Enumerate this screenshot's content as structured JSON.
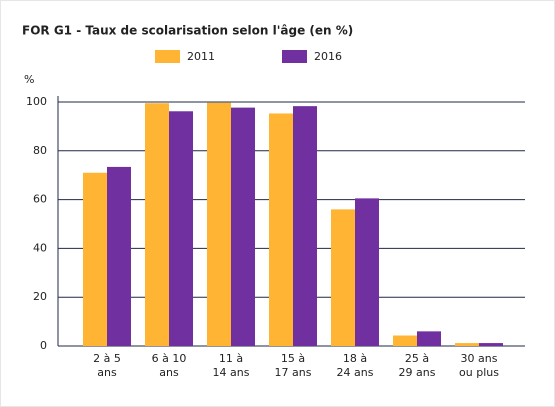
{
  "chart_data": {
    "type": "bar",
    "title": "FOR G1 - Taux de scolarisation selon l'âge (en %)",
    "y_label": "%",
    "categories": [
      [
        "2 à 5",
        "ans"
      ],
      [
        "6 à 10",
        "ans"
      ],
      [
        "11 à",
        "14 ans"
      ],
      [
        "15 à",
        "17 ans"
      ],
      [
        "18 à",
        "24 ans"
      ],
      [
        "25 à",
        "29 ans"
      ],
      [
        "30 ans",
        "ou plus"
      ]
    ],
    "series": [
      {
        "name": "2011",
        "color": "#ffb533",
        "values": [
          71,
          99.5,
          99.7,
          95.3,
          56,
          4.3,
          1.2
        ]
      },
      {
        "name": "2016",
        "color": "#7030a0",
        "values": [
          73.4,
          96.2,
          97.7,
          98.3,
          60.5,
          6,
          1.2
        ]
      }
    ],
    "ylim": [
      0,
      100
    ],
    "yticks": [
      0,
      20,
      40,
      60,
      80,
      100
    ],
    "grid": true,
    "legend": "top"
  }
}
